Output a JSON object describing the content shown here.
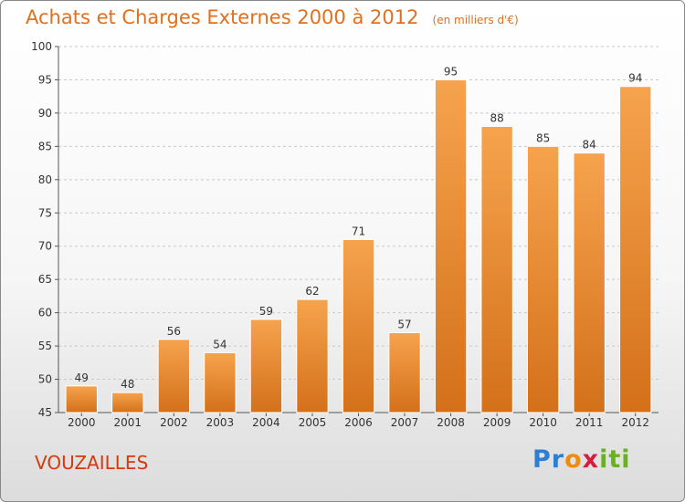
{
  "header": {
    "title": "Achats et Charges Externes 2000 à 2012",
    "unit": "(en milliers d'€)"
  },
  "footer": {
    "place": "VOUZAILLES",
    "logo_parts": [
      "Pr",
      "o",
      "x",
      "iti"
    ]
  },
  "colors": {
    "bar_top": "#f6a34e",
    "bar_bottom": "#d4701a",
    "bar_stroke": "#ffffff",
    "grid": "#c8c8c8",
    "title": "#e07020",
    "place": "#d43a10"
  },
  "chart_data": {
    "type": "bar",
    "title": "Achats et Charges Externes 2000 à 2012",
    "subtitle": "(en milliers d'€)",
    "xlabel": "",
    "ylabel": "",
    "categories": [
      "2000",
      "2001",
      "2002",
      "2003",
      "2004",
      "2005",
      "2006",
      "2007",
      "2008",
      "2009",
      "2010",
      "2011",
      "2012"
    ],
    "values": [
      49,
      48,
      56,
      54,
      59,
      62,
      71,
      57,
      95,
      88,
      85,
      84,
      94
    ],
    "ylim": [
      45,
      100
    ],
    "yticks": [
      45,
      50,
      55,
      60,
      65,
      70,
      75,
      80,
      85,
      90,
      95,
      100
    ],
    "grid": true,
    "legend": "none"
  }
}
